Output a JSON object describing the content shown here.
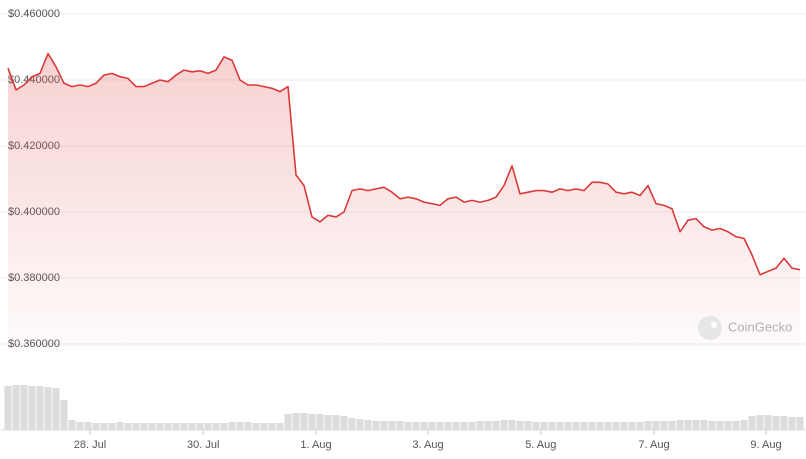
{
  "chart_data": {
    "type": "area-line",
    "color": "#d93a3a",
    "volume_color": "#dcdcdc",
    "watermark": "CoinGecko",
    "grid": true,
    "ylim": [
      0.36,
      0.46
    ],
    "yticks": [
      {
        "value": 0.46,
        "label": "$0.460000"
      },
      {
        "value": 0.44,
        "label": "$0.440000"
      },
      {
        "value": 0.42,
        "label": "$0.420000"
      },
      {
        "value": 0.4,
        "label": "$0.400000"
      },
      {
        "value": 0.38,
        "label": "$0.380000"
      },
      {
        "value": 0.36,
        "label": "$0.360000"
      }
    ],
    "xlim": [
      0,
      99
    ],
    "xticks": [
      {
        "value": 10.25,
        "label": "28. Jul"
      },
      {
        "value": 24.4,
        "label": "30. Jul"
      },
      {
        "value": 38.5,
        "label": "1. Aug"
      },
      {
        "value": 52.5,
        "label": "3. Aug"
      },
      {
        "value": 66.6,
        "label": "5. Aug"
      },
      {
        "value": 80.75,
        "label": "7. Aug"
      },
      {
        "value": 94.75,
        "label": "9. Aug"
      }
    ],
    "values": [
      0.4436,
      0.437,
      0.4385,
      0.441,
      0.442,
      0.448,
      0.444,
      0.439,
      0.438,
      0.4385,
      0.438,
      0.439,
      0.4415,
      0.442,
      0.441,
      0.4405,
      0.438,
      0.438,
      0.439,
      0.44,
      0.4395,
      0.4415,
      0.443,
      0.4425,
      0.4428,
      0.442,
      0.443,
      0.447,
      0.446,
      0.44,
      0.4385,
      0.4385,
      0.438,
      0.4375,
      0.4365,
      0.438,
      0.4112,
      0.408,
      0.3985,
      0.397,
      0.399,
      0.3985,
      0.4,
      0.4065,
      0.407,
      0.4065,
      0.407,
      0.4075,
      0.406,
      0.404,
      0.4045,
      0.404,
      0.403,
      0.4025,
      0.402,
      0.404,
      0.4045,
      0.403,
      0.4035,
      0.403,
      0.4035,
      0.4045,
      0.408,
      0.414,
      0.4055,
      0.406,
      0.4065,
      0.4065,
      0.406,
      0.407,
      0.4065,
      0.407,
      0.4065,
      0.409,
      0.409,
      0.4085,
      0.406,
      0.4055,
      0.406,
      0.405,
      0.408,
      0.4025,
      0.402,
      0.401,
      0.394,
      0.3975,
      0.398,
      0.3955,
      0.3945,
      0.395,
      0.394,
      0.3925,
      0.392,
      0.387,
      0.381,
      0.382,
      0.383,
      0.386,
      0.383,
      0.3825
    ],
    "volume_values": [
      44,
      45,
      45,
      44,
      44,
      43,
      42,
      30,
      10,
      8,
      8,
      7,
      7,
      7,
      8,
      7,
      7,
      7,
      7,
      7,
      7,
      7,
      7,
      7,
      7,
      7,
      7,
      7,
      8,
      8,
      8,
      7,
      7,
      7,
      7,
      16,
      17,
      17,
      16,
      16,
      15,
      15,
      14,
      12,
      11,
      10,
      9,
      9,
      9,
      9,
      8,
      8,
      8,
      8,
      8,
      8,
      8,
      8,
      8,
      9,
      9,
      9,
      10,
      10,
      9,
      9,
      8,
      8,
      8,
      8,
      8,
      8,
      8,
      8,
      8,
      8,
      8,
      8,
      8,
      8,
      9,
      9,
      9,
      9,
      10,
      10,
      10,
      10,
      9,
      9,
      9,
      9,
      10,
      14,
      15,
      15,
      14,
      14,
      13,
      13
    ]
  }
}
